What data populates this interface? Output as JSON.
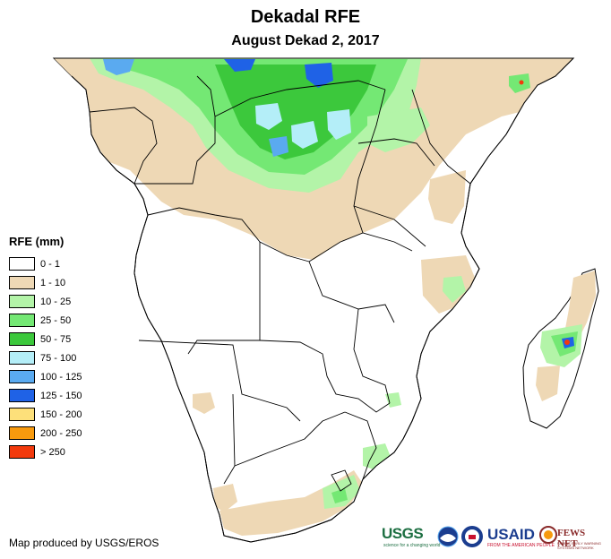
{
  "title": "Dekadal RFE",
  "subtitle": "August Dekad 2, 2017",
  "legend": {
    "title": "RFE (mm)",
    "items": [
      {
        "label": "0 - 1",
        "color": "#ffffff"
      },
      {
        "label": "1 - 10",
        "color": "#eed8b5"
      },
      {
        "label": "10 - 25",
        "color": "#b3f4a8"
      },
      {
        "label": "25 - 50",
        "color": "#74e874"
      },
      {
        "label": "50 - 75",
        "color": "#3cc83c"
      },
      {
        "label": "75 - 100",
        "color": "#b4eef8"
      },
      {
        "label": "100 - 125",
        "color": "#5aaaf0"
      },
      {
        "label": "125 - 150",
        "color": "#1f62e6"
      },
      {
        "label": "150 - 200",
        "color": "#fde07a"
      },
      {
        "label": "200 - 250",
        "color": "#f79a0e"
      },
      {
        "label": "> 250",
        "color": "#f23a0d"
      }
    ]
  },
  "credit": "Map produced by USGS/EROS",
  "logos": {
    "usgs": "USGS",
    "usgs_tagline": "science for a changing world",
    "usaid": "USAID",
    "usaid_tagline": "FROM THE AMERICAN PEOPLE",
    "fews": "FEWS NET",
    "fews_tagline": "FAMINE EARLY WARNING SYSTEMS NETWORK"
  }
}
